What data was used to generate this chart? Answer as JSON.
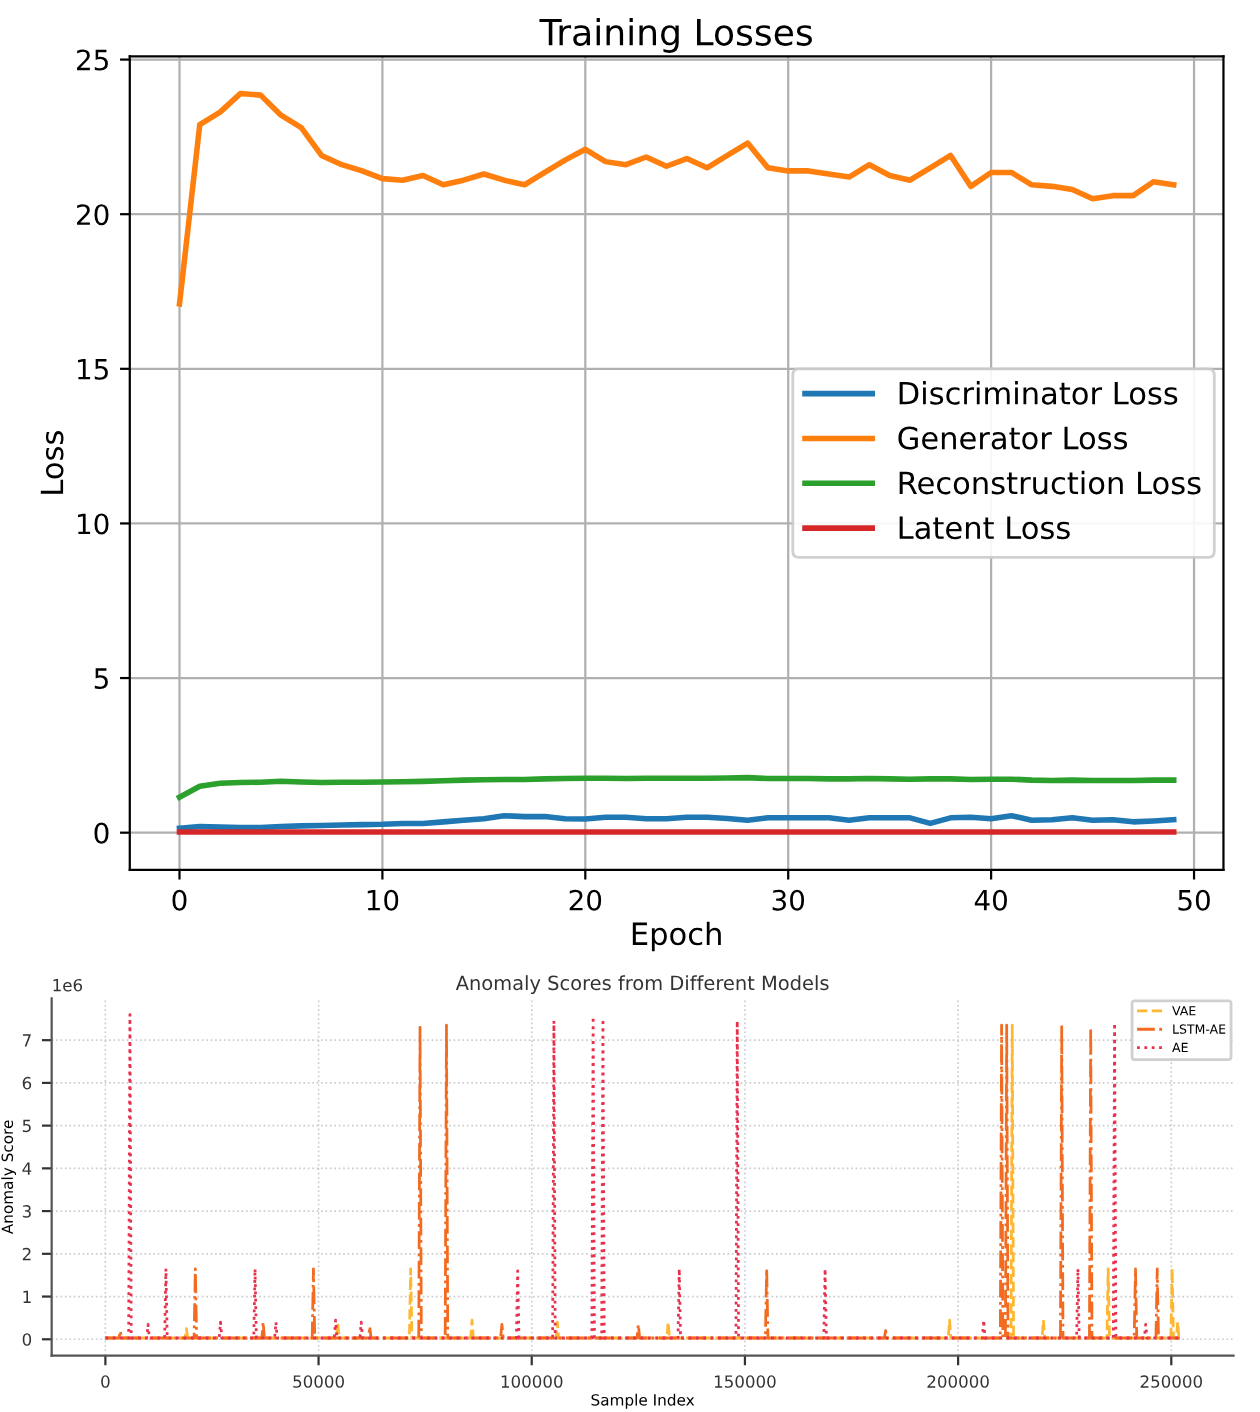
{
  "chart_data": [
    {
      "type": "line",
      "title": "Training Losses",
      "xlabel": "Epoch",
      "ylabel": "Loss",
      "x": [
        0,
        1,
        2,
        3,
        4,
        5,
        6,
        7,
        8,
        9,
        10,
        11,
        12,
        13,
        14,
        15,
        16,
        17,
        18,
        19,
        20,
        21,
        22,
        23,
        24,
        25,
        26,
        27,
        28,
        29,
        30,
        31,
        32,
        33,
        34,
        35,
        36,
        37,
        38,
        39,
        40,
        41,
        42,
        43,
        44,
        45,
        46,
        47,
        48,
        49
      ],
      "xlim": [
        -2.45,
        51.45
      ],
      "xticks": [
        0,
        10,
        20,
        30,
        40,
        50
      ],
      "ylim": [
        -1.2,
        25.1
      ],
      "yticks": [
        0,
        5,
        10,
        15,
        20,
        25
      ],
      "grid": true,
      "legend": "right",
      "line_style": "solid",
      "series": [
        {
          "name": "Discriminator Loss",
          "color": "#1f77b4",
          "values": [
            0.14,
            0.2,
            0.18,
            0.17,
            0.17,
            0.2,
            0.22,
            0.23,
            0.25,
            0.26,
            0.27,
            0.3,
            0.3,
            0.35,
            0.4,
            0.45,
            0.55,
            0.52,
            0.52,
            0.45,
            0.44,
            0.5,
            0.5,
            0.45,
            0.45,
            0.5,
            0.5,
            0.46,
            0.4,
            0.48,
            0.48,
            0.48,
            0.48,
            0.4,
            0.48,
            0.48,
            0.48,
            0.3,
            0.48,
            0.5,
            0.45,
            0.55,
            0.4,
            0.42,
            0.48,
            0.4,
            0.42,
            0.35,
            0.38,
            0.42
          ]
        },
        {
          "name": "Generator Loss",
          "color": "#ff7f0e",
          "values": [
            17.1,
            22.9,
            23.3,
            23.9,
            23.85,
            23.2,
            22.8,
            21.9,
            21.6,
            21.4,
            21.15,
            21.1,
            21.25,
            20.95,
            21.1,
            21.3,
            21.1,
            20.95,
            21.35,
            21.75,
            22.1,
            21.7,
            21.6,
            21.85,
            21.55,
            21.8,
            21.5,
            21.9,
            22.3,
            21.5,
            21.4,
            21.4,
            21.3,
            21.2,
            21.6,
            21.25,
            21.1,
            21.5,
            21.9,
            20.9,
            21.35,
            21.35,
            20.95,
            20.9,
            20.8,
            20.5,
            20.6,
            20.6,
            21.05,
            20.95
          ]
        },
        {
          "name": "Reconstruction Loss",
          "color": "#2ca02c",
          "values": [
            1.15,
            1.5,
            1.6,
            1.62,
            1.63,
            1.66,
            1.64,
            1.62,
            1.63,
            1.63,
            1.64,
            1.65,
            1.66,
            1.68,
            1.7,
            1.71,
            1.72,
            1.72,
            1.74,
            1.75,
            1.76,
            1.76,
            1.75,
            1.76,
            1.76,
            1.76,
            1.76,
            1.77,
            1.78,
            1.75,
            1.75,
            1.75,
            1.74,
            1.74,
            1.75,
            1.74,
            1.73,
            1.74,
            1.74,
            1.72,
            1.73,
            1.73,
            1.7,
            1.69,
            1.7,
            1.69,
            1.69,
            1.69,
            1.7,
            1.7
          ]
        },
        {
          "name": "Latent Loss",
          "color": "#d62728",
          "values": [
            0.02,
            0.02,
            0.02,
            0.02,
            0.02,
            0.02,
            0.02,
            0.02,
            0.02,
            0.02,
            0.02,
            0.02,
            0.02,
            0.02,
            0.02,
            0.02,
            0.02,
            0.02,
            0.02,
            0.02,
            0.02,
            0.02,
            0.02,
            0.02,
            0.02,
            0.02,
            0.02,
            0.02,
            0.02,
            0.02,
            0.02,
            0.02,
            0.02,
            0.02,
            0.02,
            0.02,
            0.02,
            0.02,
            0.02,
            0.02,
            0.02,
            0.02,
            0.02,
            0.02,
            0.02,
            0.02,
            0.02,
            0.02,
            0.02,
            0.02
          ]
        }
      ]
    },
    {
      "type": "line",
      "title": "Anomaly Scores from Different Models",
      "xlabel": "Sample Index",
      "ylabel": "Anomaly Score",
      "annotations": [
        "1e6"
      ],
      "xlim": [
        -12600,
        264600
      ],
      "xticks": [
        0,
        50000,
        100000,
        150000,
        200000,
        250000
      ],
      "ylim": [
        -0.38,
        7.98
      ],
      "yticks": [
        0,
        1,
        2,
        3,
        4,
        5,
        6,
        7
      ],
      "grid": true,
      "legend": "top right",
      "series": [
        {
          "name": "VAE",
          "color": "#ffb732",
          "line_style": "dashed",
          "x": [
            0,
            18700,
            19000,
            19300,
            54200,
            54500,
            54800,
            71300,
            71600,
            71900,
            85700,
            86000,
            86300,
            105700,
            106000,
            106300,
            131700,
            132000,
            132300,
            197700,
            198000,
            198300,
            212400,
            212700,
            213000,
            219700,
            220000,
            220300,
            234900,
            235200,
            235500,
            249900,
            250200,
            250500,
            251200,
            251500,
            251800,
            252000
          ],
          "values": [
            0.03,
            0.03,
            0.25,
            0.03,
            0.03,
            0.4,
            0.03,
            0.03,
            1.65,
            0.03,
            0.03,
            0.45,
            0.03,
            0.03,
            0.4,
            0.03,
            0.03,
            0.4,
            0.03,
            0.03,
            0.45,
            0.03,
            0.03,
            7.35,
            0.03,
            0.03,
            0.45,
            0.03,
            0.03,
            1.65,
            0.03,
            0.03,
            1.65,
            0.03,
            0.03,
            0.4,
            0.03,
            0.03
          ]
        },
        {
          "name": "LSTM-AE",
          "color": "#f26b21",
          "line_style": "dashdot",
          "x": [
            0,
            3200,
            3500,
            3800,
            20800,
            21100,
            21400,
            36700,
            37000,
            37300,
            48500,
            48800,
            49100,
            61700,
            62000,
            62300,
            73500,
            73800,
            74100,
            79700,
            80000,
            80300,
            92700,
            93000,
            93300,
            124700,
            125000,
            125300,
            154800,
            155100,
            155400,
            182700,
            183000,
            183300,
            209900,
            210200,
            210500,
            211100,
            211400,
            211700,
            224000,
            224300,
            224600,
            230800,
            231100,
            231400,
            241300,
            241600,
            241900,
            246400,
            246700,
            247000,
            252000
          ],
          "values": [
            0.03,
            0.03,
            0.2,
            0.03,
            0.03,
            1.65,
            0.03,
            0.03,
            0.4,
            0.03,
            0.03,
            1.65,
            0.03,
            0.03,
            0.3,
            0.03,
            0.03,
            7.3,
            0.03,
            0.03,
            7.35,
            0.03,
            0.03,
            0.35,
            0.03,
            0.03,
            0.35,
            0.03,
            0.03,
            1.65,
            0.03,
            0.03,
            0.2,
            0.03,
            0.03,
            7.35,
            0.03,
            0.03,
            7.35,
            0.03,
            0.03,
            7.35,
            0.03,
            0.03,
            7.3,
            0.03,
            0.03,
            1.65,
            0.03,
            0.03,
            1.65,
            0.03,
            0.03
          ]
        },
        {
          "name": "AE",
          "color": "#e8304f",
          "line_style": "dotted",
          "x": [
            0,
            5460,
            5760,
            6060,
            9700,
            10000,
            10300,
            13900,
            14200,
            14500,
            26700,
            27000,
            27300,
            34800,
            35100,
            35400,
            39700,
            40000,
            40300,
            53700,
            54000,
            54300,
            59700,
            60000,
            60300,
            96400,
            96700,
            97000,
            104900,
            105200,
            105500,
            114100,
            114400,
            114700,
            116400,
            116700,
            117000,
            134300,
            134600,
            134900,
            147900,
            148200,
            148500,
            168500,
            168800,
            169100,
            205700,
            206000,
            206300,
            227800,
            228100,
            228400,
            236400,
            236700,
            237000,
            243700,
            244000,
            244300,
            252000
          ],
          "values": [
            0.03,
            0.03,
            7.6,
            0.03,
            0.03,
            0.35,
            0.03,
            0.03,
            1.65,
            0.03,
            0.03,
            0.4,
            0.03,
            0.03,
            1.65,
            0.03,
            0.03,
            0.4,
            0.03,
            0.03,
            0.45,
            0.03,
            0.03,
            0.4,
            0.03,
            0.03,
            1.6,
            0.03,
            0.03,
            7.45,
            0.03,
            0.03,
            7.55,
            0.03,
            0.03,
            7.5,
            0.03,
            0.03,
            1.65,
            0.03,
            0.03,
            7.45,
            0.03,
            0.03,
            1.65,
            0.03,
            0.03,
            0.45,
            0.03,
            0.03,
            1.65,
            0.03,
            0.03,
            7.4,
            0.03,
            0.03,
            0.35,
            0.03,
            0.03
          ]
        }
      ]
    }
  ]
}
